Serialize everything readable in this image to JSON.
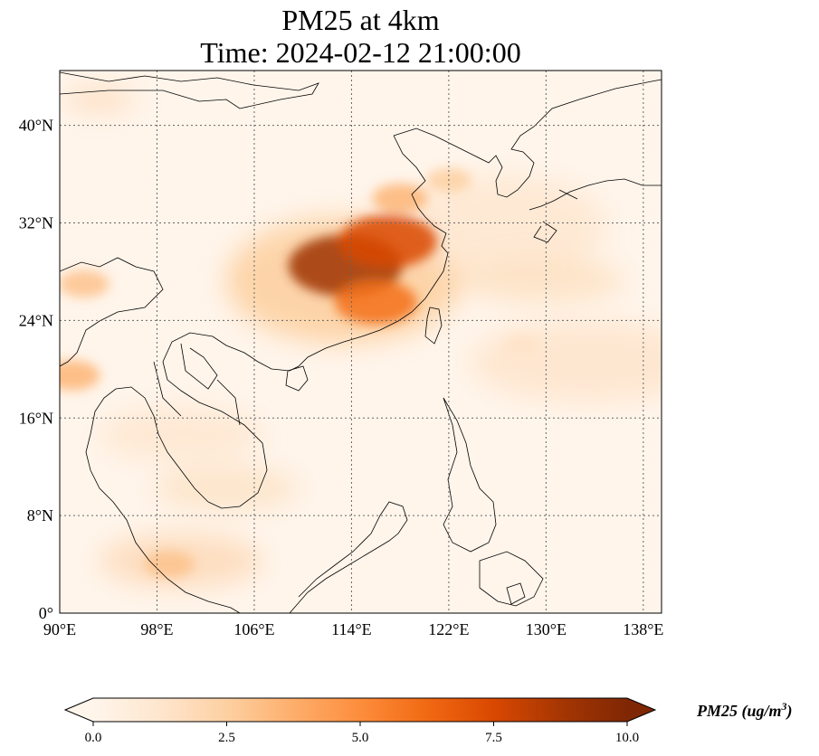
{
  "title": {
    "line1": "PM25 at 4km",
    "line2": "Time: 2024-02-12 21:00:00"
  },
  "map": {
    "extent": {
      "lon": [
        90,
        139.5
      ],
      "lat": [
        0,
        44.5
      ]
    },
    "x_ticks": [
      {
        "value": 90,
        "label": "90°E"
      },
      {
        "value": 98,
        "label": "98°E"
      },
      {
        "value": 106,
        "label": "106°E"
      },
      {
        "value": 114,
        "label": "114°E"
      },
      {
        "value": 122,
        "label": "122°E"
      },
      {
        "value": 130,
        "label": "130°E"
      },
      {
        "value": 138,
        "label": "138°E"
      }
    ],
    "y_ticks": [
      {
        "value": 0,
        "label": "0°"
      },
      {
        "value": 8,
        "label": "8°N"
      },
      {
        "value": 16,
        "label": "16°N"
      },
      {
        "value": 24,
        "label": "24°N"
      },
      {
        "value": 32,
        "label": "32°N"
      },
      {
        "value": 40,
        "label": "40°N"
      }
    ],
    "gridlines": true,
    "background_color": "#fff5eb",
    "hotspots": [
      {
        "region": "central-east-china",
        "lon": 113.5,
        "lat": 28.5,
        "value": 9.0
      },
      {
        "region": "yangtze-delta",
        "lon": 117,
        "lat": 30.5,
        "value": 7.5
      },
      {
        "region": "south-china-coast",
        "lon": 116,
        "lat": 25.5,
        "value": 6.0
      },
      {
        "region": "north-china-plain",
        "lon": 118,
        "lat": 34,
        "value": 3.5
      },
      {
        "region": "yellow-sea-plume",
        "lon": 122,
        "lat": 35.5,
        "value": 2.5
      },
      {
        "region": "bay-of-bengal-west",
        "lon": 91,
        "lat": 19.5,
        "value": 3.5
      },
      {
        "region": "myanmar-north",
        "lon": 92,
        "lat": 27,
        "value": 3.0
      },
      {
        "region": "malay-peninsula",
        "lon": 99,
        "lat": 4,
        "value": 3.0
      },
      {
        "region": "taiwan-plume",
        "lon": 128,
        "lat": 22,
        "value": 1.5
      }
    ]
  },
  "colorbar": {
    "min": 0.0,
    "max": 10.0,
    "extend": "both",
    "tick_labels": [
      "0.0",
      "2.5",
      "5.0",
      "7.5",
      "10.0"
    ],
    "tick_values": [
      0,
      2.5,
      5,
      7.5,
      10
    ],
    "label": "PM25 (ug/m",
    "label_superscript": "3",
    "label_close": ")",
    "colormap": [
      "#fff5eb",
      "#fee6ce",
      "#fdd0a2",
      "#fdae6b",
      "#fd8d3c",
      "#f16913",
      "#d94801",
      "#a63603",
      "#7f2704"
    ]
  }
}
